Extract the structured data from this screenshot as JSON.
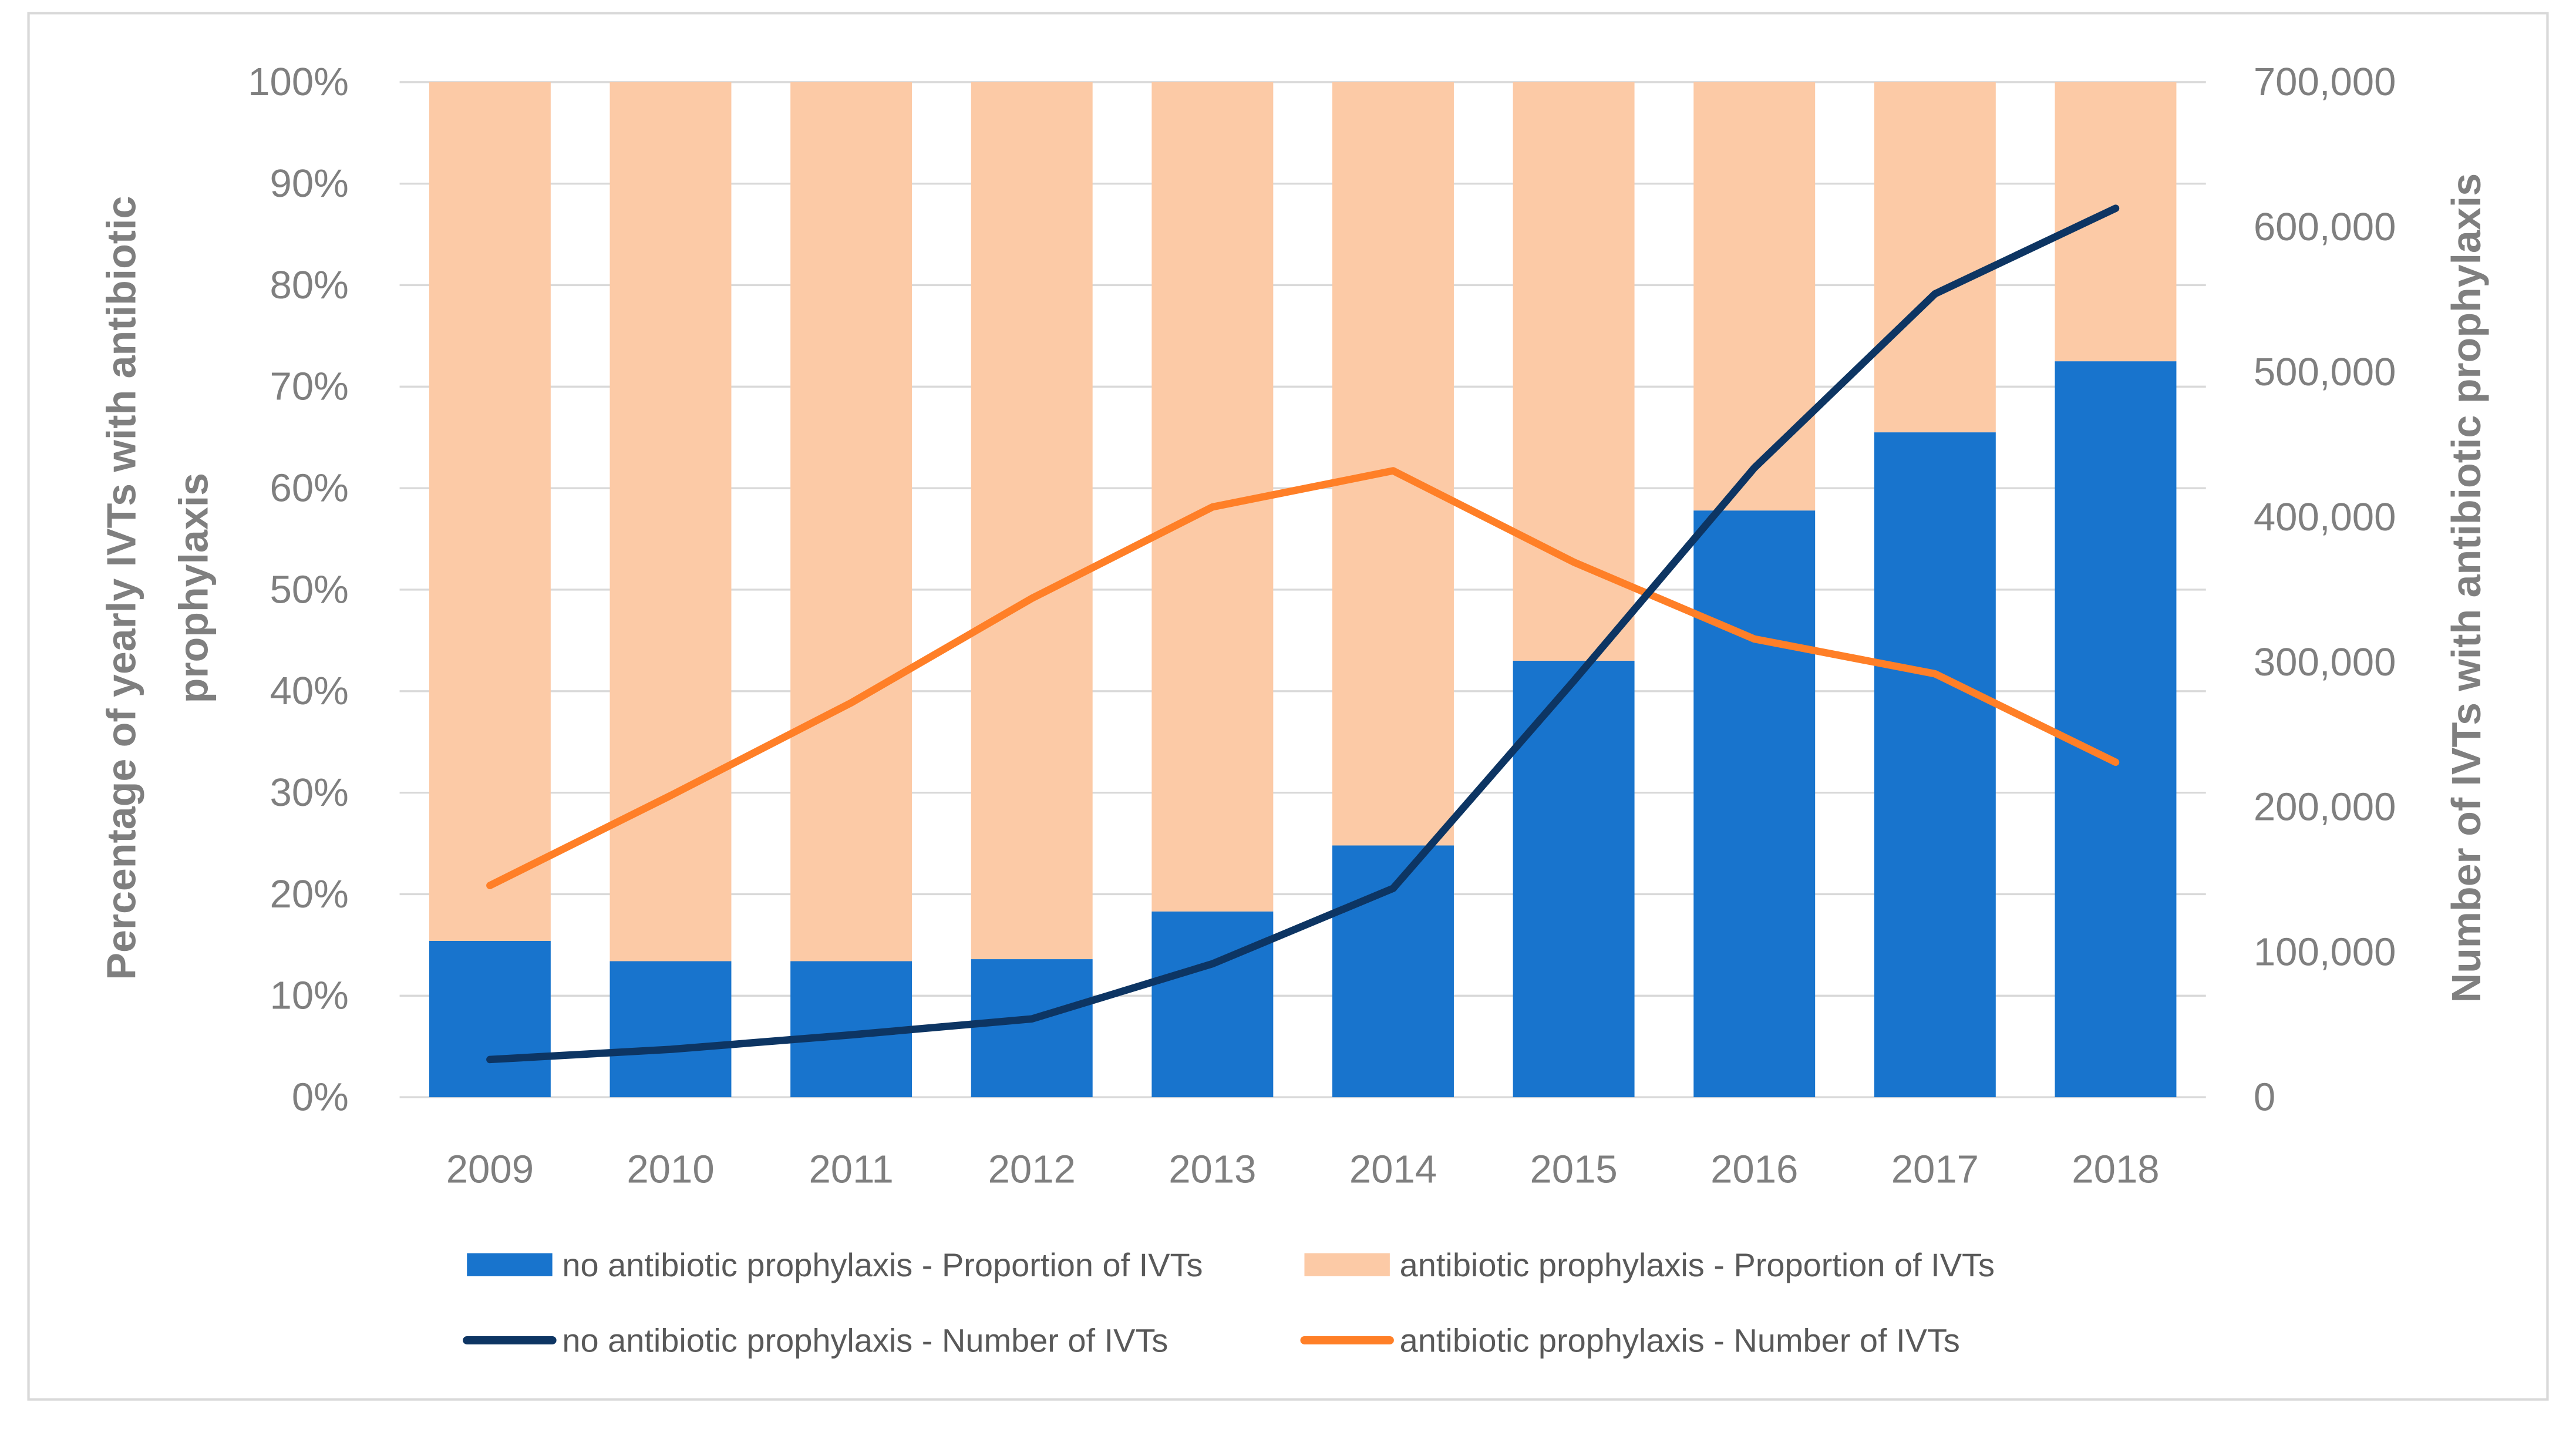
{
  "chart_data": {
    "type": "bar+line",
    "categories": [
      "2009",
      "2010",
      "2011",
      "2012",
      "2013",
      "2014",
      "2015",
      "2016",
      "2017",
      "2018"
    ],
    "left_axis": {
      "label_lines": [
        "Percentage of yearly IVTs with antibiotic",
        "prophylaxis"
      ],
      "ylim": [
        0,
        100
      ],
      "ticks": [
        "0%",
        "10%",
        "20%",
        "30%",
        "40%",
        "50%",
        "60%",
        "70%",
        "80%",
        "90%",
        "100%"
      ]
    },
    "right_axis": {
      "label": "Number of IVTs with antibiotic prophylaxis",
      "ylim": [
        0,
        700000
      ],
      "ticks": [
        "0",
        "100,000",
        "200,000",
        "300,000",
        "400,000",
        "500,000",
        "600,000",
        "700,000"
      ]
    },
    "grid": true,
    "legend_position": "bottom",
    "series": [
      {
        "name": "no antibiotic prophylaxis - Proportion of IVTs",
        "type": "stacked-bar",
        "axis": "left",
        "color": "#1874cd",
        "values": [
          15.4,
          13.4,
          13.4,
          13.6,
          18.3,
          24.8,
          43.0,
          57.8,
          65.5,
          72.5
        ]
      },
      {
        "name": "antibiotic prophylaxis - Proportion of IVTs",
        "type": "stacked-bar",
        "axis": "left",
        "color": "#fccaa6",
        "values": [
          84.6,
          86.6,
          86.6,
          86.4,
          81.7,
          75.2,
          57.0,
          42.2,
          34.5,
          27.5
        ]
      },
      {
        "name": "no antibiotic prophylaxis - Number of IVTs",
        "type": "line",
        "axis": "right",
        "color": "#0d3563",
        "values": [
          26000,
          33000,
          43000,
          54000,
          92000,
          144000,
          287000,
          434000,
          554000,
          613000
        ]
      },
      {
        "name": "antibiotic prophylaxis - Number of IVTs",
        "type": "line",
        "axis": "right",
        "color": "#ff7f27",
        "values": [
          146000,
          208000,
          272000,
          344000,
          407000,
          432000,
          369000,
          316000,
          292000,
          231000
        ]
      }
    ]
  }
}
